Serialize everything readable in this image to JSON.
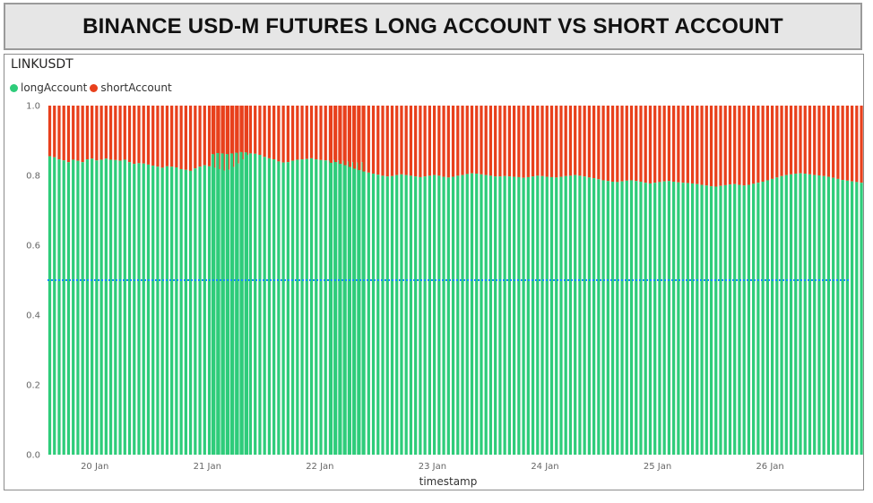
{
  "header": {
    "title": "BINANCE USD-M FUTURES LONG ACCOUNT VS SHORT ACCOUNT"
  },
  "chart_data": {
    "type": "bar",
    "stacked": true,
    "subtitle": "LINKUSDT",
    "xlabel": "timestamp",
    "ylabel": "",
    "ylim": [
      0,
      1
    ],
    "y_ticks": [
      "0.0",
      "0.2",
      "0.4",
      "0.6",
      "0.8",
      "1.0"
    ],
    "x_ticks": [
      "20 Jan",
      "21 Jan",
      "22 Jan",
      "23 Jan",
      "24 Jan",
      "25 Jan",
      "26 Jan"
    ],
    "x_tick_days": [
      20,
      21,
      22,
      23,
      24,
      25,
      26
    ],
    "bar_width_days": 0.0417,
    "reference_line": {
      "y": 0.5,
      "color": "#118dff",
      "style": "dotted"
    },
    "legend_position": "top-left",
    "series": [
      {
        "name": "longAccount",
        "color": "#2ecc7a"
      },
      {
        "name": "shortAccount",
        "color": "#e8401c"
      }
    ],
    "segments": [
      {
        "start_day": 19.6,
        "long": [
          0.855,
          0.852,
          0.846,
          0.843,
          0.838,
          0.845,
          0.842,
          0.838,
          0.846,
          0.848,
          0.843,
          0.845,
          0.848,
          0.845,
          0.844,
          0.842,
          0.845,
          0.838,
          0.833,
          0.835,
          0.834,
          0.831,
          0.828,
          0.825,
          0.822,
          0.826,
          0.825,
          0.823,
          0.818,
          0.816,
          0.813,
          0.82,
          0.825,
          0.829,
          0.826,
          0.822,
          0.818,
          0.814,
          0.816,
          0.824,
          0.834,
          0.846,
          0.858
        ]
      },
      {
        "start_day": 21.05,
        "long": [
          0.861,
          0.864,
          0.863,
          0.861,
          0.863,
          0.865,
          0.867,
          0.866,
          0.863,
          0.862,
          0.859,
          0.853,
          0.849,
          0.846,
          0.84,
          0.837,
          0.838,
          0.842,
          0.845,
          0.846,
          0.847,
          0.849,
          0.846,
          0.844,
          0.843,
          0.842,
          0.844,
          0.843,
          0.842,
          0.84,
          0.838,
          0.837,
          0.838
        ]
      },
      {
        "start_day": 22.1,
        "long": [
          0.836,
          0.838,
          0.833,
          0.829,
          0.824,
          0.819,
          0.815,
          0.811,
          0.808,
          0.805,
          0.802,
          0.799,
          0.797,
          0.798,
          0.801,
          0.803,
          0.801,
          0.799,
          0.797,
          0.795,
          0.797,
          0.799,
          0.801,
          0.799,
          0.796,
          0.794,
          0.796,
          0.799,
          0.801,
          0.804,
          0.806,
          0.805,
          0.803,
          0.801,
          0.799,
          0.797,
          0.797,
          0.798,
          0.797,
          0.796,
          0.795,
          0.793,
          0.795,
          0.797,
          0.799,
          0.798,
          0.796,
          0.795,
          0.794,
          0.796,
          0.798,
          0.799,
          0.801,
          0.799,
          0.797,
          0.794,
          0.792,
          0.789,
          0.786,
          0.784,
          0.782,
          0.781,
          0.783,
          0.785,
          0.786,
          0.784,
          0.782,
          0.779,
          0.777,
          0.779,
          0.781,
          0.783,
          0.784,
          0.782,
          0.78,
          0.779,
          0.778,
          0.777,
          0.775,
          0.773,
          0.771,
          0.769,
          0.768,
          0.77,
          0.772,
          0.774,
          0.775,
          0.773,
          0.771,
          0.773,
          0.776,
          0.779,
          0.782,
          0.786,
          0.79,
          0.794,
          0.798,
          0.801,
          0.803,
          0.805,
          0.806,
          0.805,
          0.803,
          0.801,
          0.8,
          0.798,
          0.796,
          0.793,
          0.79,
          0.787,
          0.785,
          0.783,
          0.781,
          0.779,
          0.777,
          0.776,
          0.775,
          0.775,
          0.774,
          0.774,
          0.773,
          0.773,
          0.772,
          0.772,
          0.771,
          0.771,
          0.77,
          0.772,
          0.775,
          0.778,
          0.781,
          0.784,
          0.787,
          0.79,
          0.789,
          0.787,
          0.786,
          0.784,
          0.782,
          0.78,
          0.778,
          0.776,
          0.774,
          0.773,
          0.772,
          0.771,
          0.77,
          0.769,
          0.768,
          0.767,
          0.766,
          0.765,
          0.764,
          0.764,
          0.763,
          0.763,
          0.762,
          0.762,
          0.761,
          0.76,
          0.759,
          0.758,
          0.757,
          0.756,
          0.755,
          0.755,
          0.756,
          0.757,
          0.758,
          0.759,
          0.76,
          0.761,
          0.76
        ]
      }
    ]
  }
}
